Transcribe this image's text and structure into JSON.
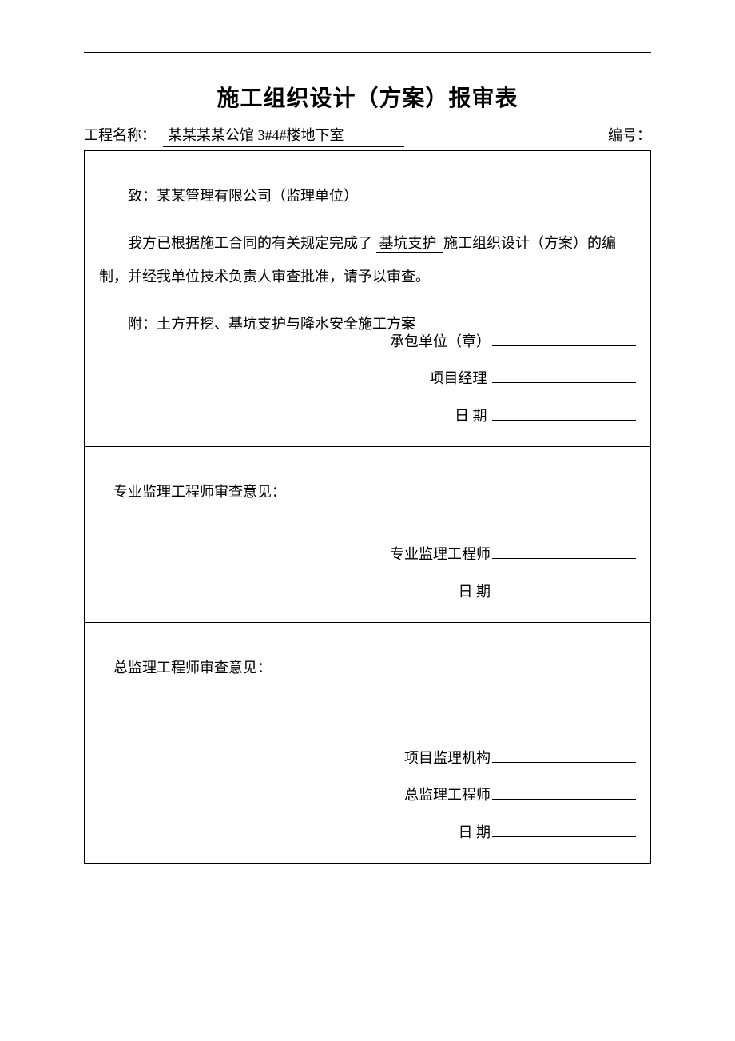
{
  "title": "施工组织设计（方案）报审表",
  "meta": {
    "project_label": "工程名称：  ",
    "project_value": "某某某某公馆 3#4#楼地下室",
    "number_label": "编号："
  },
  "section1": {
    "line_to": "致：某某管理有限公司（监理单位）",
    "line_body_a": "我方已根据施工合同的有关规定完成了",
    "line_body_u": "  基坑支护  ",
    "line_body_b": "施工组织设计（方案）的编制，并经我单位技术负责人审查批准，请予以审查。",
    "attach": "附：土方开挖、基坑支护与降水安全施工方案",
    "sig1": "承包单位（章）",
    "sig2": "项目经理 ",
    "sig3_label": "日    期 "
  },
  "section2": {
    "heading": "专业监理工程师审查意见：",
    "sig1": "专业监理工程师",
    "sig2_label": "日    期"
  },
  "section3": {
    "heading": "总监理工程师审查意见：",
    "sig1": "项目监理机构",
    "sig2": "总监理工程师",
    "sig3_label": "日    期"
  }
}
